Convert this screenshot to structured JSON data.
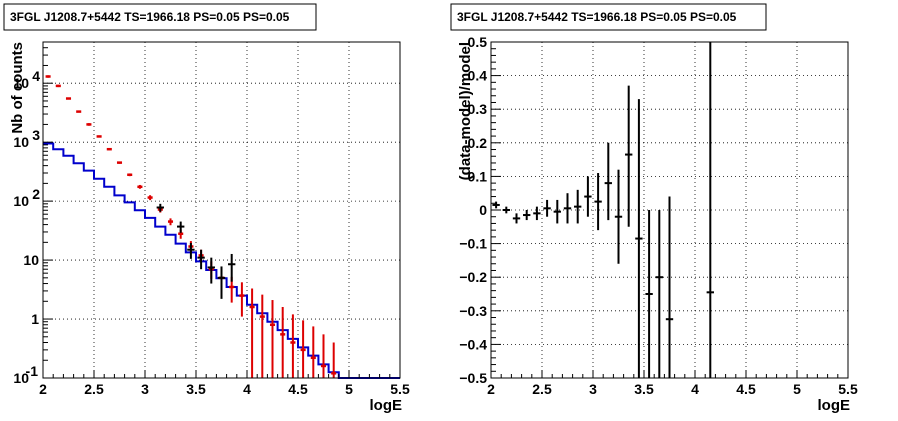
{
  "chart_data": [
    {
      "type": "line",
      "title": "3FGL J1208.7+5442 TS=1966.18 PS=0.05 PS=0.05",
      "xlabel": "logE",
      "ylabel": "Nb of counts",
      "xlim": [
        2,
        5.5
      ],
      "ylim": [
        0.1,
        50000
      ],
      "log_y": true,
      "grid": true,
      "x_ticks": [
        "2",
        "2.5",
        "3",
        "3.5",
        "4",
        "4.5",
        "5",
        "5.5"
      ],
      "y_ticks": [
        {
          "value": 0.1,
          "label": "10",
          "exp": "-1"
        },
        {
          "value": 1,
          "label": "1",
          "exp": ""
        },
        {
          "value": 10,
          "label": "10",
          "exp": ""
        },
        {
          "value": 100,
          "label": "10",
          "exp": "2"
        },
        {
          "value": 1000,
          "label": "10",
          "exp": "3"
        },
        {
          "value": 10000,
          "label": "10",
          "exp": "4"
        }
      ],
      "colors": {
        "model": "#0000cc",
        "red": "#dd0000",
        "black": "#000000"
      },
      "model_edges": [
        2.0,
        2.1,
        2.2,
        2.3,
        2.4,
        2.5,
        2.6,
        2.7,
        2.8,
        2.9,
        3.0,
        3.1,
        3.2,
        3.3,
        3.4,
        3.5,
        3.6,
        3.7,
        3.8,
        3.9,
        4.0,
        4.1,
        4.2,
        4.3,
        4.4,
        4.5,
        4.6,
        4.7,
        4.8,
        4.9,
        5.0,
        5.1,
        5.2,
        5.3,
        5.4,
        5.5
      ],
      "model_values": [
        950,
        760,
        590,
        440,
        330,
        240,
        175,
        125,
        95,
        70,
        52,
        37,
        27,
        19,
        13.5,
        9.5,
        6.8,
        4.9,
        3.5,
        2.5,
        1.75,
        1.25,
        0.9,
        0.65,
        0.46,
        0.33,
        0.24,
        0.17,
        0.125,
        0.1,
        0.1,
        0.1,
        0.1,
        0.1,
        0.1
      ],
      "red_points": {
        "x": [
          2.05,
          2.15,
          2.25,
          2.35,
          2.45,
          2.55,
          2.65,
          2.75,
          2.85,
          2.95,
          3.05,
          3.15,
          3.25,
          3.35,
          3.45,
          3.55,
          3.65,
          3.75,
          3.85,
          3.95,
          4.05,
          4.15,
          4.25,
          4.35,
          4.45,
          4.55,
          4.65,
          4.75,
          4.85
        ],
        "y": [
          13000,
          9000,
          5500,
          3300,
          2000,
          1250,
          760,
          450,
          280,
          175,
          115,
          72,
          45,
          28,
          17,
          12,
          7,
          5,
          3.5,
          2.5,
          1.6,
          1.1,
          0.8,
          0.55,
          0.4,
          0.3,
          0.22,
          0.16,
          0.12
        ],
        "ylo": [
          12400,
          8600,
          5300,
          3200,
          1900,
          1200,
          730,
          430,
          265,
          162,
          104,
          64,
          39,
          23,
          13.5,
          9,
          4.8,
          3,
          1.9,
          1.1,
          0.1,
          0.1,
          0.1,
          0.1,
          0.1,
          0.1,
          0.1,
          0.1,
          0.1
        ],
        "yhi": [
          13600,
          9400,
          5700,
          3400,
          2100,
          1300,
          790,
          470,
          295,
          188,
          126,
          80,
          51,
          33,
          21,
          15,
          9.5,
          7,
          5.2,
          4.2,
          3.3,
          2.6,
          2.1,
          1.6,
          1.2,
          0.95,
          0.75,
          0.55,
          0.4
        ]
      },
      "black_points": {
        "x": [
          3.15,
          3.35,
          3.45,
          3.55,
          3.65,
          3.75,
          3.85
        ],
        "y": [
          78,
          37,
          15,
          11,
          7.5,
          5,
          8.5
        ],
        "ylo": [
          66,
          29,
          10.5,
          7,
          4,
          2.2,
          4.3
        ],
        "yhi": [
          90,
          45,
          19.5,
          15,
          11,
          7.8,
          12.7
        ]
      }
    },
    {
      "type": "scatter",
      "title": "3FGL J1208.7+5442 TS=1966.18 PS=0.05 PS=0.05",
      "xlabel": "logE",
      "ylabel": "(data-model)/model",
      "xlim": [
        2,
        5.5
      ],
      "ylim": [
        -0.5,
        0.5
      ],
      "grid": true,
      "x_ticks": [
        "2",
        "2.5",
        "3",
        "3.5",
        "4",
        "4.5",
        "5",
        "5.5"
      ],
      "y_ticks": [
        "−0.5",
        "−0.4",
        "−0.3",
        "−0.2",
        "−0.1",
        "0",
        "0.1",
        "0.2",
        "0.3",
        "0.4",
        "0.5"
      ],
      "y_tick_values": [
        -0.5,
        -0.4,
        -0.3,
        -0.2,
        -0.1,
        0,
        0.1,
        0.2,
        0.3,
        0.4,
        0.5
      ],
      "points": {
        "x": [
          2.05,
          2.15,
          2.25,
          2.35,
          2.45,
          2.55,
          2.65,
          2.75,
          2.85,
          2.95,
          3.05,
          3.15,
          3.25,
          3.35,
          3.45,
          3.55,
          3.65,
          3.75,
          4.15
        ],
        "y": [
          0.015,
          0.0,
          -0.025,
          -0.015,
          -0.01,
          0.005,
          -0.005,
          0.005,
          0.01,
          0.04,
          0.025,
          0.08,
          -0.02,
          0.165,
          -0.085,
          -0.25,
          -0.2,
          -0.325,
          -0.245
        ],
        "ylo": [
          0.005,
          -0.01,
          -0.04,
          -0.03,
          -0.03,
          -0.02,
          -0.04,
          -0.04,
          -0.04,
          -0.02,
          -0.06,
          -0.03,
          -0.16,
          -0.05,
          -0.5,
          -0.5,
          -0.5,
          -0.5,
          -0.5
        ],
        "yhi": [
          0.025,
          0.01,
          -0.01,
          0.0,
          0.01,
          0.03,
          0.03,
          0.05,
          0.06,
          0.1,
          0.11,
          0.2,
          0.12,
          0.37,
          0.33,
          0.0,
          0.0,
          0.04,
          0.5
        ]
      }
    }
  ]
}
